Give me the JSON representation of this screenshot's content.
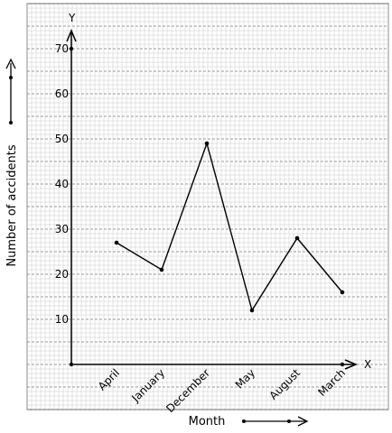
{
  "chart_data": {
    "type": "line",
    "categories": [
      "April",
      "January",
      "December",
      "May",
      "August",
      "March"
    ],
    "series": [
      {
        "values": [
          27,
          21,
          49,
          12,
          28,
          16
        ]
      }
    ],
    "y_ticks": [
      10,
      20,
      30,
      40,
      50,
      60,
      70
    ],
    "ylim": [
      0,
      70
    ],
    "xlabel": "Month",
    "ylabel": "Number of accidents",
    "x_axis_letter": "X",
    "y_axis_letter": "Y",
    "grid": true
  }
}
